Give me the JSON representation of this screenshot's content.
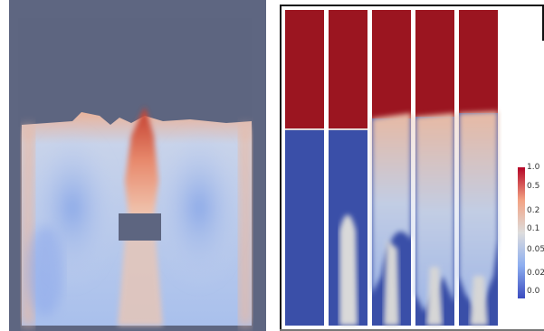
{
  "left_panel": {
    "background_color": "#5e6681",
    "description_icon": "cfd-field-image"
  },
  "right_panel": {
    "column_count": 5
  },
  "colorbar": {
    "gradient": [
      "#3b4cc0",
      "#8daef0",
      "#dddddd",
      "#f3a283",
      "#b40426"
    ],
    "ticks": [
      {
        "label": "1.0",
        "value": 1.0
      },
      {
        "label": "0.5",
        "value": 0.5
      },
      {
        "label": "0.2",
        "value": 0.2
      },
      {
        "label": "0.1",
        "value": 0.1
      },
      {
        "label": "0.05",
        "value": 0.05
      },
      {
        "label": "0.02",
        "value": 0.02
      },
      {
        "label": "0.0",
        "value": 0.0
      }
    ]
  }
}
